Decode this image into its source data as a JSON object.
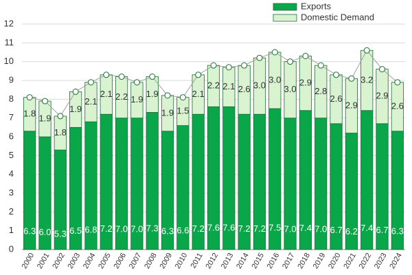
{
  "chart_data": {
    "type": "stacked-bar",
    "categories": [
      "2000",
      "2001",
      "2002",
      "2003",
      "2004",
      "2005",
      "2006",
      "2007",
      "2008",
      "2009",
      "2010",
      "2011",
      "2012",
      "2013",
      "2014",
      "2015",
      "2016",
      "2017",
      "2018",
      "2019",
      "2020",
      "2021",
      "2022",
      "2023",
      "2024"
    ],
    "series": [
      {
        "name": "Exports",
        "color": "#0aa64a",
        "label_color": "#ffffff",
        "values": [
          6.3,
          6.0,
          5.3,
          6.5,
          6.8,
          7.2,
          7.0,
          7.0,
          7.3,
          6.3,
          6.6,
          7.2,
          7.6,
          7.6,
          7.2,
          7.2,
          7.5,
          7.0,
          7.4,
          7.0,
          6.7,
          6.2,
          7.4,
          6.7,
          6.3
        ],
        "value_labels": [
          "6.3",
          "6.0",
          "5.3",
          "6.5",
          "6.8",
          "7.2",
          "7.0",
          "7.0",
          "7.3",
          "6.3",
          "6.6",
          "7.2",
          "7.6",
          "7.6",
          "7.2",
          "7.2",
          "7.5",
          "7.0",
          "7.4",
          "7.0",
          "6.7",
          "6.2",
          "7.4",
          "6.7",
          "6.3"
        ]
      },
      {
        "name": "Domestic Demand",
        "color": "#d9f2d0",
        "label_color": "#333333",
        "values": [
          1.8,
          1.9,
          1.8,
          1.9,
          2.1,
          2.1,
          2.2,
          1.9,
          1.9,
          1.9,
          1.5,
          2.1,
          2.2,
          2.1,
          2.6,
          3.0,
          3.0,
          3.0,
          2.9,
          2.8,
          2.6,
          2.9,
          3.2,
          2.9,
          2.6
        ],
        "value_labels": [
          "1.8",
          "1.9",
          "1.8",
          "1.9",
          "2.1",
          "2.1",
          "2.2",
          "1.9",
          "1.9",
          "1.9",
          "1.5",
          "2.1",
          "2.2",
          "2.1",
          "2.6",
          "3.0",
          "3.0",
          "3.0",
          "2.9",
          "2.8",
          "2.6",
          "2.9",
          "3.2",
          "2.9",
          "2.6"
        ]
      }
    ],
    "ylim": [
      0,
      12
    ],
    "yticks": [
      0,
      1,
      2,
      3,
      4,
      5,
      6,
      7,
      8,
      9,
      10,
      11,
      12
    ],
    "grid": true,
    "total_line": true
  }
}
